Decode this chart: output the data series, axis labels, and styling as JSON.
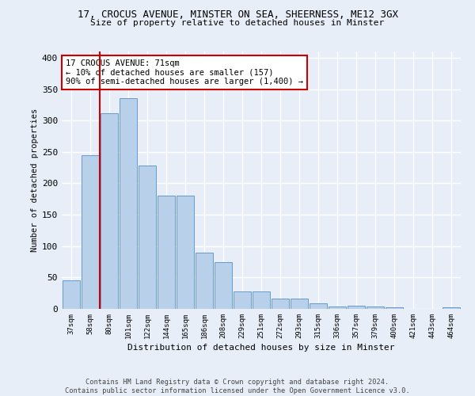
{
  "title1": "17, CROCUS AVENUE, MINSTER ON SEA, SHEERNESS, ME12 3GX",
  "title2": "Size of property relative to detached houses in Minster",
  "xlabel": "Distribution of detached houses by size in Minster",
  "ylabel": "Number of detached properties",
  "categories": [
    "37sqm",
    "58sqm",
    "80sqm",
    "101sqm",
    "122sqm",
    "144sqm",
    "165sqm",
    "186sqm",
    "208sqm",
    "229sqm",
    "251sqm",
    "272sqm",
    "293sqm",
    "315sqm",
    "336sqm",
    "357sqm",
    "379sqm",
    "400sqm",
    "421sqm",
    "443sqm",
    "464sqm"
  ],
  "values": [
    45,
    245,
    312,
    335,
    228,
    180,
    180,
    90,
    75,
    28,
    28,
    17,
    17,
    9,
    4,
    5,
    4,
    3,
    0,
    0,
    3
  ],
  "bar_color": "#b8d0ea",
  "bar_edge_color": "#6699cc",
  "vline_position": 1.5,
  "vline_color": "#cc0000",
  "annotation_text": "17 CROCUS AVENUE: 71sqm\n← 10% of detached houses are smaller (157)\n90% of semi-detached houses are larger (1,400) →",
  "annotation_box_facecolor": "white",
  "annotation_box_edgecolor": "#cc0000",
  "footnote1": "Contains HM Land Registry data © Crown copyright and database right 2024.",
  "footnote2": "Contains public sector information licensed under the Open Government Licence v3.0.",
  "ylim": [
    0,
    410
  ],
  "yticks": [
    0,
    50,
    100,
    150,
    200,
    250,
    300,
    350,
    400
  ],
  "bg_color": "#e8eef8",
  "grid_color": "white"
}
